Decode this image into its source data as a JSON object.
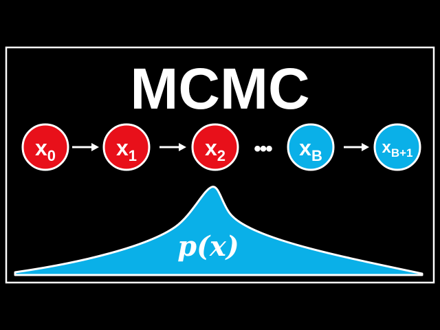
{
  "title": "MCMC",
  "colors": {
    "background": "#000000",
    "frame": "#ffffff",
    "sample_red": "#e8101a",
    "sample_blue": "#0ab0e8",
    "curve_fill": "#0ab0e8",
    "text": "#ffffff"
  },
  "chain": [
    {
      "base": "x",
      "sub": "0",
      "state": "red"
    },
    {
      "base": "x",
      "sub": "1",
      "state": "red"
    },
    {
      "base": "x",
      "sub": "2",
      "state": "red"
    },
    {
      "base": "x",
      "sub": "B",
      "state": "blue"
    },
    {
      "base": "x",
      "sub": "B+1",
      "state": "blue"
    }
  ],
  "ellipsis": "•••",
  "distribution_label": "p(x)"
}
